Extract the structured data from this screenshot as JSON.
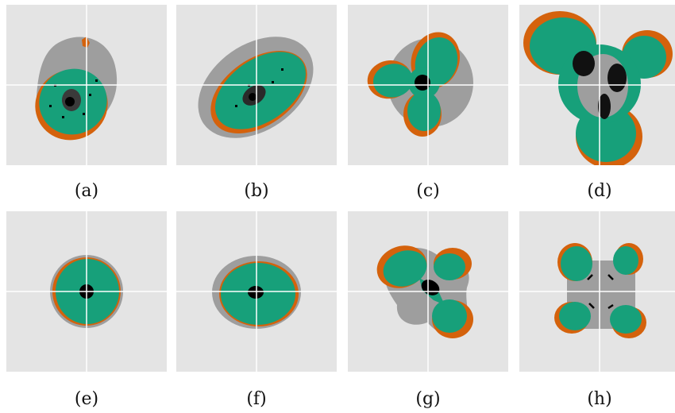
{
  "colors": {
    "background": "#e4e4e4",
    "gray": "#9e9e9e",
    "green": "#17a07a",
    "orange": "#d4620c",
    "black": "#000000",
    "crosshair": "#ffffff"
  },
  "panels": [
    {
      "caption": "(a)",
      "shape": "noisy tilted ellipse with gray halo and orange rim (lower-left)"
    },
    {
      "caption": "(b)",
      "shape": "noisy tilted ellipse, gray halo upper-left"
    },
    {
      "caption": "(c)",
      "shape": "noisy three-lobed cluster, orange lobe tips"
    },
    {
      "caption": "(d)",
      "shape": "large noisy three-lobed cluster with dark core"
    },
    {
      "caption": "(e)",
      "shape": "smooth disk with black core"
    },
    {
      "caption": "(f)",
      "shape": "smooth ellipse with black core"
    },
    {
      "caption": "(g)",
      "shape": "smooth three-lobed cluster"
    },
    {
      "caption": "(h)",
      "shape": "smooth four-lobed cluster"
    }
  ]
}
